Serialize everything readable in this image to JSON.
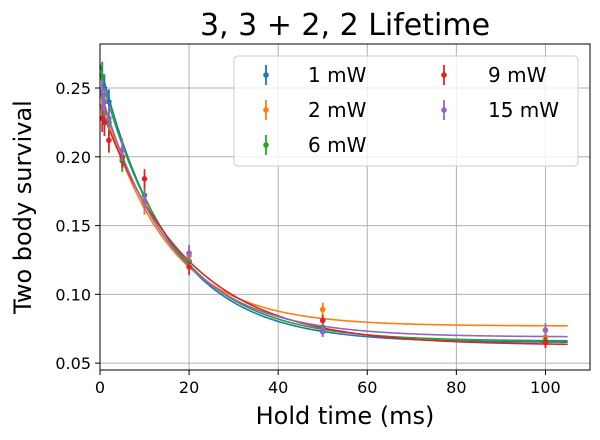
{
  "chart_data": {
    "type": "scatter",
    "title": "3, 3 + 2, 2 Lifetime",
    "xlabel": "Hold time (ms)",
    "ylabel": "Two body survival",
    "xlim": [
      0,
      110
    ],
    "ylim": [
      0.045,
      0.282
    ],
    "xticks": [
      0,
      20,
      40,
      60,
      80,
      100
    ],
    "yticks": [
      0.05,
      0.1,
      0.15,
      0.2,
      0.25
    ],
    "ytick_labels": [
      "0.05",
      "0.10",
      "0.15",
      "0.20",
      "0.25"
    ],
    "grid": true,
    "legend_position": "top-right",
    "series": [
      {
        "name": "1 mW",
        "color": "#1f77b4",
        "x": [
          0.5,
          1,
          2,
          5,
          10,
          20,
          50,
          100
        ],
        "y": [
          0.258,
          0.25,
          0.24,
          0.2,
          0.165,
          0.124,
          0.073,
          0.066
        ],
        "err": [
          0.011,
          0.01,
          0.009,
          0.008,
          0.007,
          0.006,
          0.004,
          0.004
        ],
        "fit": {
          "A": 0.202,
          "tau": 15.5,
          "C": 0.065
        }
      },
      {
        "name": "2 mW",
        "color": "#ff7f0e",
        "x": [
          0.5,
          1,
          2,
          5,
          10,
          20,
          50,
          100
        ],
        "y": [
          0.236,
          0.24,
          0.225,
          0.198,
          0.165,
          0.128,
          0.089,
          0.069
        ],
        "err": [
          0.01,
          0.01,
          0.009,
          0.008,
          0.007,
          0.006,
          0.005,
          0.004
        ],
        "fit": {
          "A": 0.17,
          "tau": 14.5,
          "C": 0.077
        }
      },
      {
        "name": "6 mW",
        "color": "#2ca02c",
        "x": [
          0.5,
          1,
          2,
          5,
          10,
          20,
          50,
          100
        ],
        "y": [
          0.258,
          0.232,
          0.225,
          0.197,
          0.172,
          0.124,
          0.076,
          0.066
        ],
        "err": [
          0.011,
          0.01,
          0.009,
          0.008,
          0.007,
          0.006,
          0.004,
          0.004
        ],
        "fit": {
          "A": 0.195,
          "tau": 16.0,
          "C": 0.066
        }
      },
      {
        "name": "9 mW",
        "color": "#d62728",
        "x": [
          0.5,
          1,
          2,
          5,
          10,
          20,
          50,
          100
        ],
        "y": [
          0.228,
          0.225,
          0.212,
          0.2,
          0.184,
          0.12,
          0.081,
          0.065
        ],
        "err": [
          0.01,
          0.01,
          0.009,
          0.008,
          0.007,
          0.006,
          0.004,
          0.004
        ],
        "fit": {
          "A": 0.175,
          "tau": 19.0,
          "C": 0.063
        }
      },
      {
        "name": "15 mW",
        "color": "#9467bd",
        "x": [
          0.5,
          1,
          2,
          5,
          10,
          20,
          50,
          100
        ],
        "y": [
          0.245,
          0.24,
          0.228,
          0.205,
          0.168,
          0.13,
          0.074,
          0.074
        ],
        "err": [
          0.011,
          0.01,
          0.009,
          0.008,
          0.007,
          0.006,
          0.005,
          0.005
        ],
        "fit": {
          "A": 0.18,
          "tau": 16.0,
          "C": 0.069
        }
      }
    ]
  }
}
